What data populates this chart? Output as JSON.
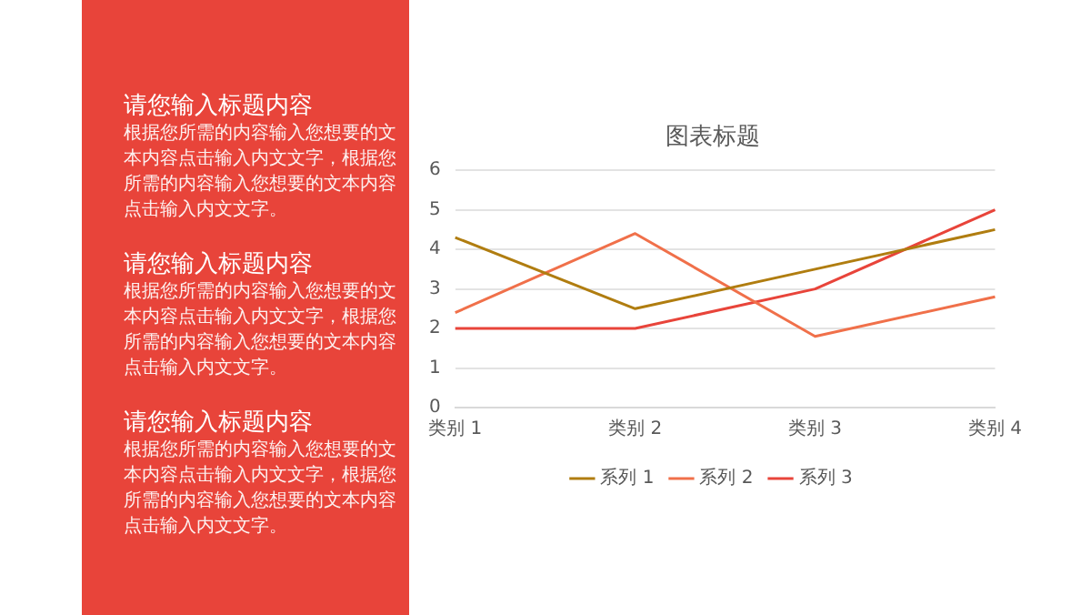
{
  "chart_data": {
    "type": "line",
    "title": "图表标题",
    "categories": [
      "类别 1",
      "类别 2",
      "类别 3",
      "类别 4"
    ],
    "series": [
      {
        "name": "系列 1",
        "color": "#b07d10",
        "values": [
          4.3,
          2.5,
          3.5,
          4.5
        ]
      },
      {
        "name": "系列 2",
        "color": "#f0704a",
        "values": [
          2.4,
          4.4,
          1.8,
          2.8
        ]
      },
      {
        "name": "系列 3",
        "color": "#e8443a",
        "values": [
          2,
          2,
          3,
          5
        ]
      }
    ],
    "ylim": [
      0,
      6
    ],
    "yticks": [
      0,
      1,
      2,
      3,
      4,
      5,
      6
    ],
    "grid": "y",
    "legend": "bottom",
    "annotations": [
      "请您输入标题内容",
      "根据您所需的内容输入您想要的文本内容点击输入内文文字，根据您所需的内容输入您想要的文本内容点击输入内文文字。",
      "请您输入标题内容",
      "根据您所需的内容输入您想要的文本内容点击输入内文文字，根据您所需的内容输入您想要的文本内容点击输入内文文字。",
      "请您输入标题内容",
      "根据您所需的内容输入您想要的文本内容点击输入内文文字，根据您所需的内容输入您想要的文本内容点击输入内文文字。"
    ]
  }
}
